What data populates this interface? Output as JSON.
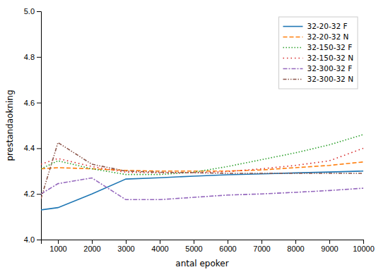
{
  "chart_data": {
    "type": "line",
    "xlabel": "antal epoker",
    "ylabel": "prestandaokning",
    "x": [
      500,
      1000,
      2000,
      3000,
      4000,
      5000,
      6000,
      7000,
      8000,
      9000,
      10000
    ],
    "xlim": [
      500,
      10000
    ],
    "ylim": [
      4.0,
      5.0
    ],
    "xticks": [
      1000,
      2000,
      3000,
      4000,
      5000,
      6000,
      7000,
      8000,
      9000,
      10000
    ],
    "yticks": [
      {
        "value": 4.0,
        "label": "4.0"
      },
      4.2,
      4.4,
      4.6,
      4.8,
      {
        "value": 5.0,
        "label": "5.0"
      }
    ],
    "series": [
      {
        "name": "32-20-32 F",
        "line_style": "solid",
        "values": [
          4.13,
          4.14,
          4.2,
          4.265,
          4.271,
          4.278,
          4.284,
          4.288,
          4.292,
          4.296,
          4.3
        ]
      },
      {
        "name": "32-20-32 N",
        "line_style": "dashed",
        "values": [
          4.31,
          4.315,
          4.31,
          4.303,
          4.3,
          4.3,
          4.3,
          4.305,
          4.315,
          4.325,
          4.34
        ]
      },
      {
        "name": "32-150-32 F",
        "line_style": "dotted_dense",
        "values": [
          4.31,
          4.345,
          4.31,
          4.285,
          4.285,
          4.295,
          4.32,
          4.35,
          4.38,
          4.415,
          4.46
        ]
      },
      {
        "name": "32-150-32 N",
        "line_style": "dotted_loose",
        "values": [
          4.33,
          4.355,
          4.32,
          4.295,
          4.292,
          4.293,
          4.298,
          4.31,
          4.325,
          4.345,
          4.4
        ]
      },
      {
        "name": "32-300-32 F",
        "line_style": "dashdot",
        "values": [
          4.2,
          4.245,
          4.27,
          4.175,
          4.175,
          4.185,
          4.195,
          4.2,
          4.207,
          4.215,
          4.225
        ]
      },
      {
        "name": "32-300-32 N",
        "line_style": "dashdotdot",
        "values": [
          4.18,
          4.425,
          4.33,
          4.3,
          4.295,
          4.293,
          4.29,
          4.29,
          4.29,
          4.29,
          4.29
        ]
      }
    ],
    "legend": "upper right",
    "grid": false
  }
}
